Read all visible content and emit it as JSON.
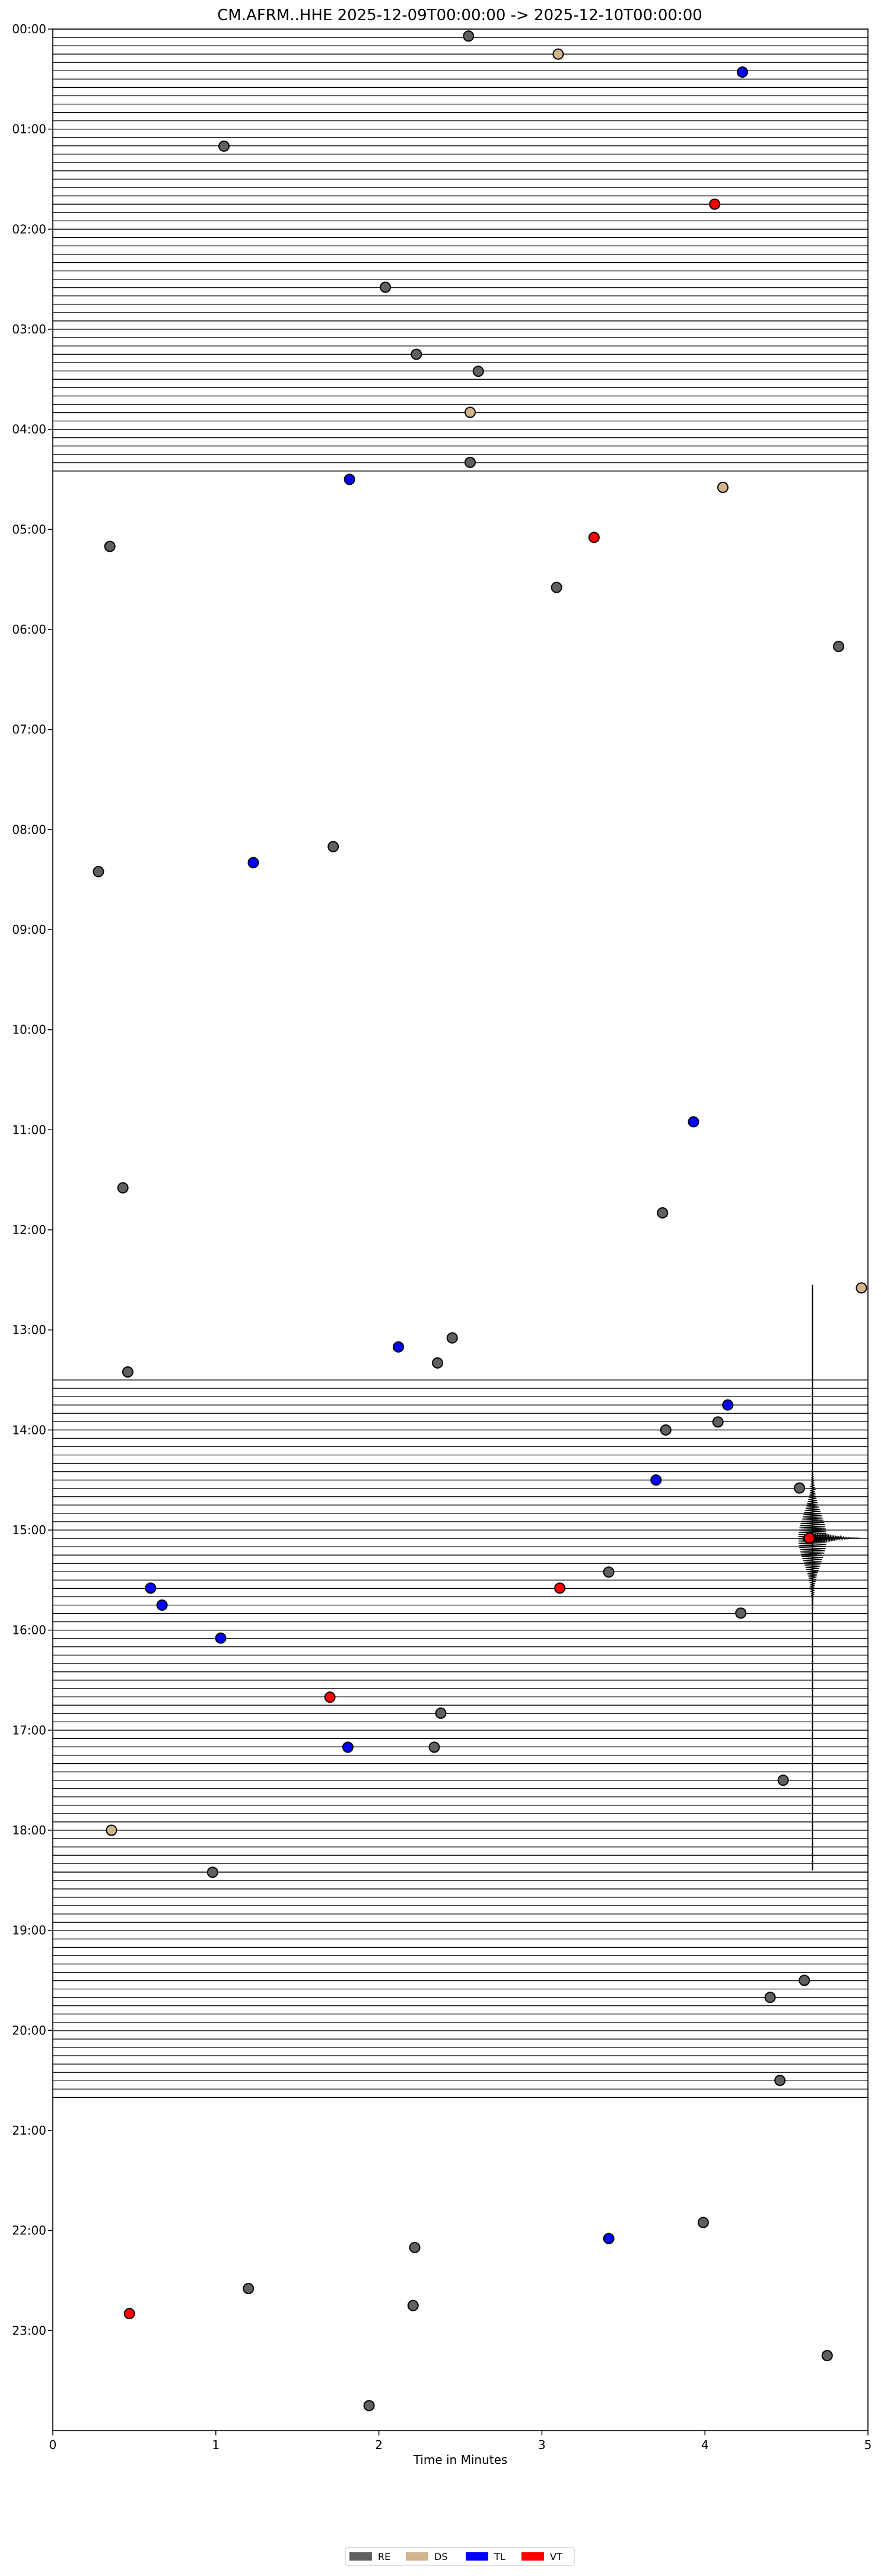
{
  "chart_data": {
    "type": "scatter",
    "title": "CM.AFRM..HHE  2025-12-09T00:00:00 -> 2025-12-10T00:00:00",
    "xlabel": "Time in Minutes",
    "ylabel": "",
    "xlim": [
      0,
      5
    ],
    "ylim_hours": [
      0,
      24
    ],
    "y_inverted": true,
    "x_ticks": [
      "0",
      "1",
      "2",
      "3",
      "4",
      "5"
    ],
    "y_ticks": [
      "00:00",
      "01:00",
      "02:00",
      "03:00",
      "04:00",
      "05:00",
      "06:00",
      "07:00",
      "08:00",
      "09:00",
      "10:00",
      "11:00",
      "12:00",
      "13:00",
      "14:00",
      "15:00",
      "16:00",
      "17:00",
      "18:00",
      "19:00",
      "20:00",
      "21:00",
      "22:00",
      "23:00"
    ],
    "grid": false,
    "legend_position": "bottom-center",
    "legend": [
      {
        "label": "RE",
        "color": "#606060"
      },
      {
        "label": "DS",
        "color": "#d2b48c"
      },
      {
        "label": "TL",
        "color": "#0000ff"
      },
      {
        "label": "VT",
        "color": "#ff0000"
      }
    ],
    "trace_windows_hours": [
      [
        0,
        4.42
      ],
      [
        13.5,
        18.42
      ],
      [
        18.42,
        20.75
      ]
    ],
    "events": [
      {
        "x": 2.55,
        "y": 0.07,
        "class": "RE"
      },
      {
        "x": 3.1,
        "y": 0.25,
        "class": "DS"
      },
      {
        "x": 4.23,
        "y": 0.43,
        "class": "TL"
      },
      {
        "x": 1.05,
        "y": 1.17,
        "class": "RE"
      },
      {
        "x": 4.06,
        "y": 1.75,
        "class": "VT"
      },
      {
        "x": 2.04,
        "y": 2.58,
        "class": "RE"
      },
      {
        "x": 2.23,
        "y": 3.25,
        "class": "RE"
      },
      {
        "x": 2.61,
        "y": 3.42,
        "class": "RE"
      },
      {
        "x": 2.56,
        "y": 3.83,
        "class": "DS"
      },
      {
        "x": 2.56,
        "y": 4.33,
        "class": "RE"
      },
      {
        "x": 1.82,
        "y": 4.5,
        "class": "TL"
      },
      {
        "x": 4.11,
        "y": 4.58,
        "class": "DS"
      },
      {
        "x": 3.32,
        "y": 5.08,
        "class": "VT"
      },
      {
        "x": 0.35,
        "y": 5.17,
        "class": "RE"
      },
      {
        "x": 3.09,
        "y": 5.58,
        "class": "RE"
      },
      {
        "x": 4.82,
        "y": 6.17,
        "class": "RE"
      },
      {
        "x": 1.72,
        "y": 8.17,
        "class": "RE"
      },
      {
        "x": 1.23,
        "y": 8.33,
        "class": "TL"
      },
      {
        "x": 0.28,
        "y": 8.42,
        "class": "RE"
      },
      {
        "x": 3.93,
        "y": 10.92,
        "class": "TL"
      },
      {
        "x": 0.43,
        "y": 11.58,
        "class": "RE"
      },
      {
        "x": 3.74,
        "y": 11.83,
        "class": "RE"
      },
      {
        "x": 4.96,
        "y": 12.58,
        "class": "DS"
      },
      {
        "x": 2.45,
        "y": 13.08,
        "class": "RE"
      },
      {
        "x": 2.12,
        "y": 13.17,
        "class": "TL"
      },
      {
        "x": 2.36,
        "y": 13.33,
        "class": "RE"
      },
      {
        "x": 0.46,
        "y": 13.42,
        "class": "RE"
      },
      {
        "x": 4.14,
        "y": 13.75,
        "class": "TL"
      },
      {
        "x": 4.08,
        "y": 13.92,
        "class": "RE"
      },
      {
        "x": 3.76,
        "y": 14.0,
        "class": "RE"
      },
      {
        "x": 3.7,
        "y": 14.5,
        "class": "TL"
      },
      {
        "x": 4.58,
        "y": 14.58,
        "class": "RE"
      },
      {
        "x": 4.64,
        "y": 15.08,
        "class": "VT"
      },
      {
        "x": 3.41,
        "y": 15.42,
        "class": "RE"
      },
      {
        "x": 0.6,
        "y": 15.58,
        "class": "TL"
      },
      {
        "x": 3.11,
        "y": 15.58,
        "class": "VT"
      },
      {
        "x": 0.67,
        "y": 15.75,
        "class": "TL"
      },
      {
        "x": 4.22,
        "y": 15.83,
        "class": "RE"
      },
      {
        "x": 1.03,
        "y": 16.08,
        "class": "TL"
      },
      {
        "x": 1.7,
        "y": 16.67,
        "class": "VT"
      },
      {
        "x": 2.38,
        "y": 16.83,
        "class": "RE"
      },
      {
        "x": 1.81,
        "y": 17.17,
        "class": "TL"
      },
      {
        "x": 2.34,
        "y": 17.17,
        "class": "RE"
      },
      {
        "x": 4.48,
        "y": 17.5,
        "class": "RE"
      },
      {
        "x": 0.36,
        "y": 18.0,
        "class": "DS"
      },
      {
        "x": 0.98,
        "y": 18.42,
        "class": "RE"
      },
      {
        "x": 4.61,
        "y": 19.5,
        "class": "RE"
      },
      {
        "x": 4.4,
        "y": 19.67,
        "class": "RE"
      },
      {
        "x": 4.46,
        "y": 20.5,
        "class": "RE"
      },
      {
        "x": 3.99,
        "y": 21.92,
        "class": "RE"
      },
      {
        "x": 3.41,
        "y": 22.08,
        "class": "TL"
      },
      {
        "x": 2.22,
        "y": 22.17,
        "class": "RE"
      },
      {
        "x": 1.2,
        "y": 22.58,
        "class": "RE"
      },
      {
        "x": 2.21,
        "y": 22.75,
        "class": "RE"
      },
      {
        "x": 0.47,
        "y": 22.83,
        "class": "VT"
      },
      {
        "x": 4.75,
        "y": 23.25,
        "class": "RE"
      },
      {
        "x": 1.94,
        "y": 23.75,
        "class": "RE"
      }
    ]
  }
}
